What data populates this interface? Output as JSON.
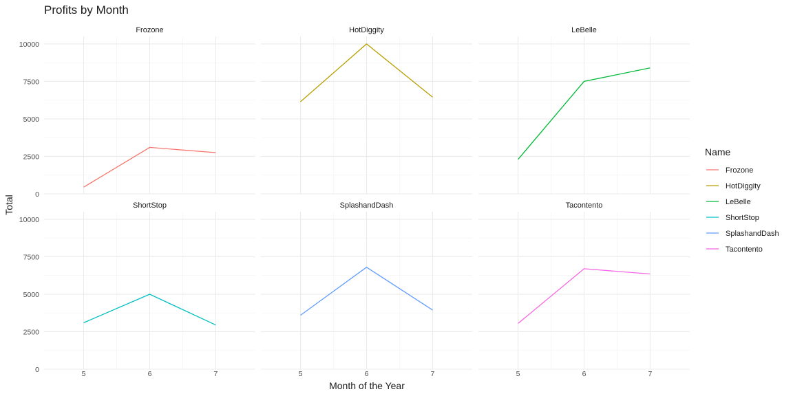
{
  "chart_data": {
    "type": "line",
    "title": "Profits by Month",
    "xlabel": "Month of the Year",
    "ylabel": "Total",
    "x": [
      5,
      6,
      7
    ],
    "x_ticks": [
      "5",
      "6",
      "7"
    ],
    "xlim": [
      4.4,
      7.6
    ],
    "ylim": [
      0,
      10500
    ],
    "y_ticks": [
      "0",
      "2500",
      "5000",
      "7500",
      "10000"
    ],
    "facet_layout": "3 columns x 2 rows",
    "grid": true,
    "legend": {
      "title": "Name",
      "position": "right"
    },
    "series": [
      {
        "name": "Frozone",
        "color": "#F8766D",
        "values": [
          450,
          3100,
          2750
        ]
      },
      {
        "name": "HotDiggity",
        "color": "#B79F00",
        "values": [
          6150,
          10000,
          6450
        ]
      },
      {
        "name": "LeBelle",
        "color": "#00BA38",
        "values": [
          2300,
          7500,
          8400
        ]
      },
      {
        "name": "ShortStop",
        "color": "#00BFC4",
        "values": [
          3100,
          5000,
          2950
        ]
      },
      {
        "name": "SplashandDash",
        "color": "#619CFF",
        "values": [
          3600,
          6800,
          3950
        ]
      },
      {
        "name": "Tacontento",
        "color": "#F564E3",
        "values": [
          3050,
          6700,
          6350
        ]
      }
    ]
  }
}
